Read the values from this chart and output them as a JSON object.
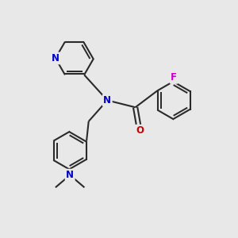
{
  "bg_color": "#e8e8e8",
  "bond_color": "#2a2a2a",
  "bond_width": 1.5,
  "atom_colors": {
    "N": "#0000cc",
    "O": "#cc0000",
    "F": "#cc00cc",
    "C": "#2a2a2a"
  },
  "font_size": 8.5
}
